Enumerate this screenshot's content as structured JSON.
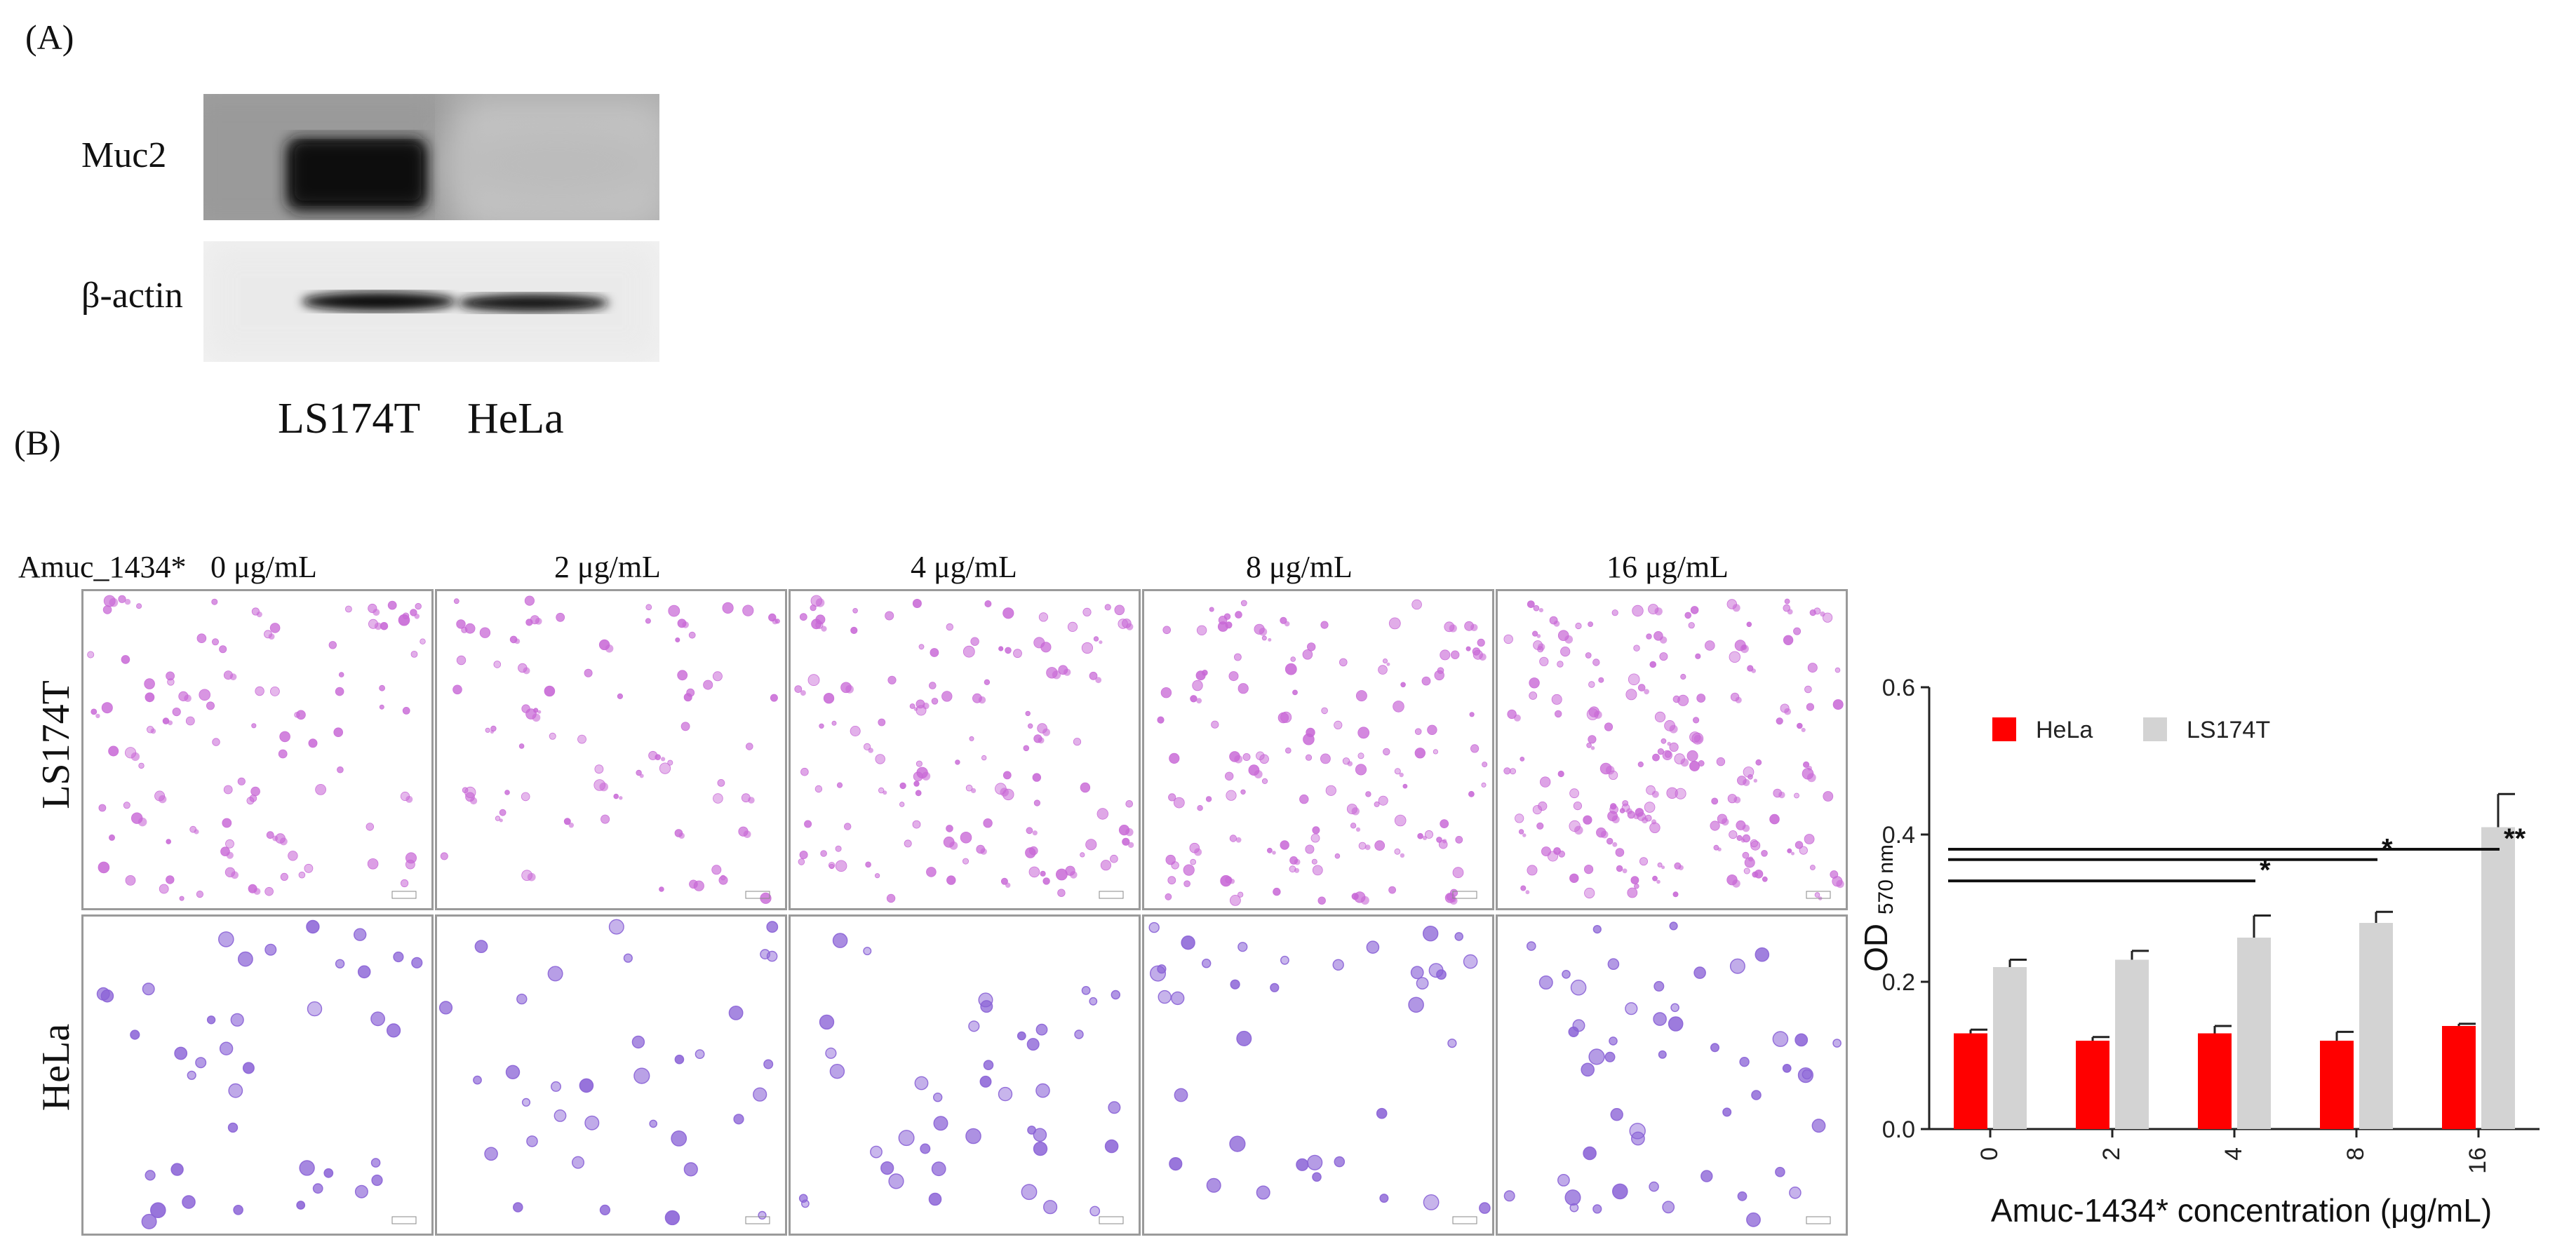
{
  "panel_a": {
    "label": "(A)",
    "rows": [
      "Muc2",
      "β-actin"
    ],
    "lanes": [
      "LS174T",
      "HeLa"
    ]
  },
  "panel_b": {
    "label": "(B)",
    "treatment_label": "Amuc_1434*",
    "columns": [
      "0 μg/mL",
      "2 μg/mL",
      "4 μg/mL",
      "8 μg/mL",
      "16 μg/mL"
    ],
    "rows": [
      "LS174T",
      "HeLa"
    ]
  },
  "colors": {
    "hela": "#ff0000",
    "ls174t": "#d3d3d3",
    "ls174t_stain": "#c868d6",
    "hela_stain": "#8a62d6"
  },
  "chart_data": {
    "type": "bar",
    "categories": [
      "0",
      "2",
      "4",
      "8",
      "16"
    ],
    "series": [
      {
        "name": "HeLa",
        "values": [
          0.13,
          0.12,
          0.13,
          0.12,
          0.14
        ],
        "errors": [
          0.005,
          0.005,
          0.01,
          0.012,
          0.003
        ]
      },
      {
        "name": "LS174T",
        "values": [
          0.22,
          0.23,
          0.26,
          0.28,
          0.41
        ],
        "errors": [
          0.01,
          0.012,
          0.03,
          0.015,
          0.045
        ]
      }
    ],
    "ylabel_main": "OD",
    "ylabel_sub": "570 nm",
    "xlabel": "Amuc-1434* concentration (μg/mL)",
    "ylim": [
      0.0,
      0.6
    ],
    "yticks": [
      "0.0",
      "0.2",
      "0.4",
      "0.6"
    ],
    "legend_position": "top",
    "grid": false,
    "significance": [
      {
        "from": "0",
        "to": "4",
        "label": "*"
      },
      {
        "from": "0",
        "to": "8",
        "label": "*"
      },
      {
        "from": "0",
        "to": "16",
        "label": "**"
      }
    ]
  }
}
